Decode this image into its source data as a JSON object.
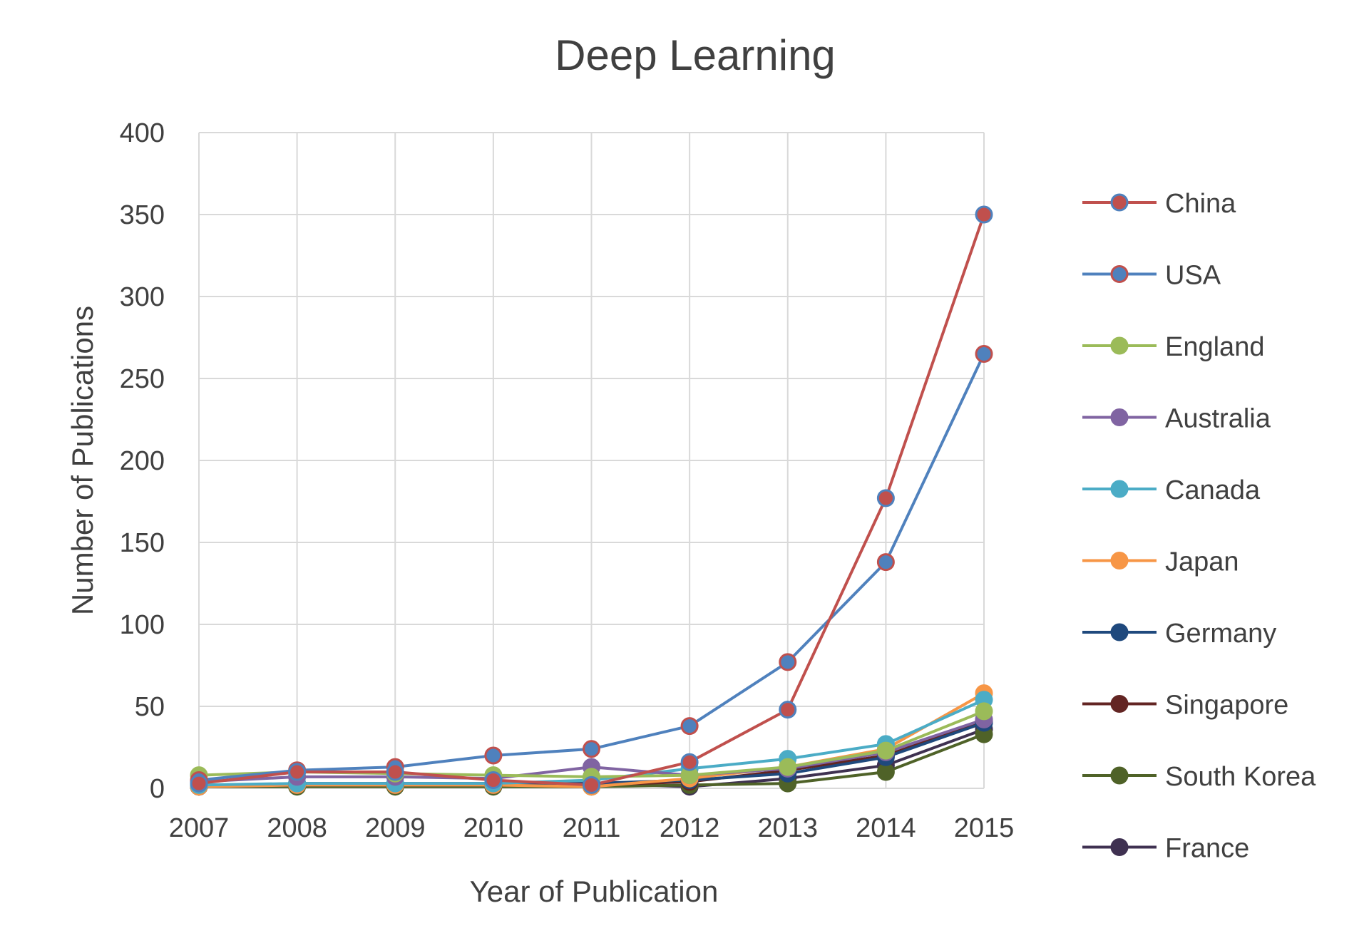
{
  "chart_data": {
    "type": "line",
    "title": "Deep Learning",
    "xlabel": "Year of Publication",
    "ylabel": "Number of Publications",
    "ylim": [
      0,
      400
    ],
    "yticks": [
      "0",
      "50",
      "100",
      "150",
      "200",
      "250",
      "300",
      "350",
      "400"
    ],
    "ytick_values": [
      0,
      50,
      100,
      150,
      200,
      250,
      300,
      350,
      400
    ],
    "categories": [
      "2007",
      "2008",
      "2009",
      "2010",
      "2011",
      "2012",
      "2013",
      "2014",
      "2015"
    ],
    "grid": true,
    "legend_position": "right",
    "series": [
      {
        "name": "China",
        "line_color": "#c0504d",
        "marker_color": "#c0504d",
        "marker_edge": "#4f81bd",
        "values": [
          3,
          10,
          10,
          5,
          2,
          16,
          48,
          177,
          350
        ]
      },
      {
        "name": "USA",
        "line_color": "#4f81bd",
        "marker_color": "#4f81bd",
        "marker_edge": "#c0504d",
        "values": [
          5,
          11,
          13,
          20,
          24,
          38,
          77,
          138,
          265
        ]
      },
      {
        "name": "England",
        "line_color": "#9bbb59",
        "marker_color": "#9bbb59",
        "marker_edge": "#9bbb59",
        "values": [
          8,
          10,
          9,
          8,
          7,
          8,
          13,
          23,
          47
        ]
      },
      {
        "name": "Australia",
        "line_color": "#8064a2",
        "marker_color": "#8064a2",
        "marker_edge": "#8064a2",
        "values": [
          4,
          7,
          7,
          6,
          13,
          8,
          12,
          22,
          42
        ]
      },
      {
        "name": "Canada",
        "line_color": "#4bacc6",
        "marker_color": "#4bacc6",
        "marker_edge": "#4bacc6",
        "values": [
          2,
          3,
          3,
          3,
          5,
          12,
          18,
          27,
          54
        ]
      },
      {
        "name": "Japan",
        "line_color": "#f79646",
        "marker_color": "#f79646",
        "marker_edge": "#f79646",
        "values": [
          1,
          2,
          2,
          2,
          1,
          6,
          13,
          24,
          58
        ]
      },
      {
        "name": "Germany",
        "line_color": "#1f497d",
        "marker_color": "#1f497d",
        "marker_edge": "#1f497d",
        "values": [
          1,
          2,
          2,
          2,
          3,
          5,
          9,
          19,
          40
        ]
      },
      {
        "name": "Singapore",
        "line_color": "#632523",
        "marker_color": "#632523",
        "marker_edge": "#632523",
        "values": [
          1,
          2,
          2,
          2,
          2,
          4,
          11,
          20,
          41
        ]
      },
      {
        "name": "South Korea",
        "line_color": "#4f6228",
        "marker_color": "#4f6228",
        "marker_edge": "#4f6228",
        "values": [
          1,
          1,
          1,
          1,
          1,
          2,
          3,
          10,
          33
        ]
      },
      {
        "name": "France",
        "line_color": "#3f3151",
        "marker_color": "#3f3151",
        "marker_edge": "#3f3151",
        "values": [
          1,
          3,
          3,
          3,
          3,
          1,
          6,
          14,
          36
        ]
      }
    ]
  }
}
